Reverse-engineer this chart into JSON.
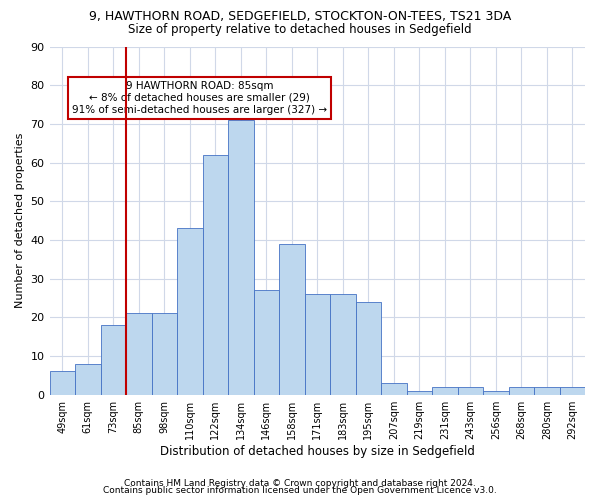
{
  "title1": "9, HAWTHORN ROAD, SEDGEFIELD, STOCKTON-ON-TEES, TS21 3DA",
  "title2": "Size of property relative to detached houses in Sedgefield",
  "xlabel": "Distribution of detached houses by size in Sedgefield",
  "ylabel": "Number of detached properties",
  "bar_color": "#bdd7ee",
  "bar_edge_color": "#4472c4",
  "categories": [
    "49sqm",
    "61sqm",
    "73sqm",
    "85sqm",
    "98sqm",
    "110sqm",
    "122sqm",
    "134sqm",
    "146sqm",
    "158sqm",
    "171sqm",
    "183sqm",
    "195sqm",
    "207sqm",
    "219sqm",
    "231sqm",
    "243sqm",
    "256sqm",
    "268sqm",
    "280sqm",
    "292sqm"
  ],
  "values": [
    6,
    8,
    18,
    21,
    21,
    43,
    62,
    71,
    27,
    39,
    26,
    26,
    24,
    3,
    1,
    2,
    2,
    1,
    2,
    2,
    2
  ],
  "ylim": [
    0,
    90
  ],
  "yticks": [
    0,
    10,
    20,
    30,
    40,
    50,
    60,
    70,
    80,
    90
  ],
  "vline_index": 3,
  "vline_color": "#c00000",
  "annotation_text": "9 HAWTHORN ROAD: 85sqm\n← 8% of detached houses are smaller (29)\n91% of semi-detached houses are larger (327) →",
  "annotation_box_color": "#ffffff",
  "annotation_box_edge": "#c00000",
  "footer1": "Contains HM Land Registry data © Crown copyright and database right 2024.",
  "footer2": "Contains public sector information licensed under the Open Government Licence v3.0.",
  "bg_color": "#ffffff",
  "grid_color": "#d0d8e8"
}
